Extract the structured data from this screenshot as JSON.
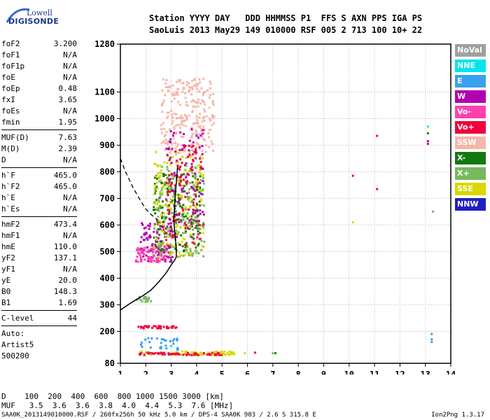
{
  "logo": {
    "line1": "Lowell",
    "line2": "DIGISONDE"
  },
  "header": {
    "line1": "Station YYYY DAY   DDD HHMMSS P1  FFS S AXN PPS IGA PS",
    "line2": "SaoLuis 2013 May29 149 010000 RSF 005 2 713 100 10+ 22"
  },
  "params": [
    {
      "k": "foF2",
      "v": "3.200"
    },
    {
      "k": "foF1",
      "v": "N/A"
    },
    {
      "k": "foF1p",
      "v": "N/A"
    },
    {
      "k": "foE",
      "v": "N/A"
    },
    {
      "k": "foEp",
      "v": "0.48"
    },
    {
      "k": "fxI",
      "v": "3.65"
    },
    {
      "k": "foEs",
      "v": "N/A"
    },
    {
      "k": "fmin",
      "v": "1.95"
    },
    {
      "sep": true
    },
    {
      "k": "MUF(D)",
      "v": "7.63"
    },
    {
      "k": "M(D)",
      "v": "2.39"
    },
    {
      "k": "D",
      "v": "N/A"
    },
    {
      "sep": true
    },
    {
      "k": "h`F",
      "v": "465.0"
    },
    {
      "k": "h`F2",
      "v": "465.0"
    },
    {
      "k": "h`E",
      "v": "N/A"
    },
    {
      "k": "h`Es",
      "v": "N/A"
    },
    {
      "sep": true
    },
    {
      "k": "hmF2",
      "v": "473.4"
    },
    {
      "k": "hmF1",
      "v": "N/A"
    },
    {
      "k": "hmE",
      "v": "110.0"
    },
    {
      "k": "yF2",
      "v": "137.1"
    },
    {
      "k": "yF1",
      "v": "N/A"
    },
    {
      "k": "yE",
      "v": "20.0"
    },
    {
      "k": "B0",
      "v": "148.3"
    },
    {
      "k": "B1",
      "v": "1.69"
    },
    {
      "sep": true
    },
    {
      "k": "C-level",
      "v": "44"
    },
    {
      "sep": true
    },
    {
      "t": "Auto:"
    },
    {
      "t": "Artist5"
    },
    {
      "t": "500200"
    }
  ],
  "legend": [
    {
      "label": "NoVal",
      "color": "#a0a0a0"
    },
    {
      "label": "NNE",
      "color": "#00e5ee"
    },
    {
      "label": "E",
      "color": "#3aa0f0"
    },
    {
      "label": "W",
      "color": "#b000b0"
    },
    {
      "label": "Vo-",
      "color": "#ff40b0"
    },
    {
      "label": "Vo+",
      "color": "#f0003c"
    },
    {
      "label": "SSW",
      "color": "#f4b8a8"
    },
    {
      "label": "X-",
      "color": "#107a10"
    },
    {
      "label": "X+",
      "color": "#78b860"
    },
    {
      "label": "SSE",
      "color": "#d8d800"
    },
    {
      "label": "NNW",
      "color": "#2020c0"
    }
  ],
  "chart_data": {
    "type": "scatter",
    "title": "",
    "xlabel": "",
    "ylabel": "",
    "xlim": [
      1,
      14
    ],
    "ylim": [
      80,
      1280
    ],
    "x_ticks": [
      1,
      2,
      3,
      4,
      5,
      6,
      7,
      8,
      9,
      10,
      11,
      12,
      13,
      14
    ],
    "y_ticks": [
      80,
      200,
      300,
      400,
      500,
      600,
      700,
      800,
      900,
      1000,
      1100,
      1280
    ],
    "grid": true,
    "profile_curve": {
      "x": [
        1.0,
        1.3,
        1.6,
        1.9,
        2.2,
        2.5,
        2.8,
        3.0,
        3.15,
        3.2,
        3.2,
        3.15,
        3.1,
        3.15,
        3.25
      ],
      "y": [
        280,
        300,
        318,
        335,
        355,
        385,
        420,
        450,
        470,
        480,
        510,
        560,
        620,
        700,
        820
      ]
    },
    "dashed_line": {
      "x": [
        1.0,
        1.2,
        1.5,
        1.8,
        2.0,
        2.2,
        2.45
      ],
      "y": [
        850,
        800,
        740,
        690,
        660,
        640,
        620
      ]
    },
    "clusters": [
      {
        "series": "SSW",
        "x": [
          2.6,
          4.7
        ],
        "y": [
          870,
          1150
        ],
        "n": 260
      },
      {
        "series": "W",
        "x": [
          1.8,
          3.1
        ],
        "y": [
          460,
          620
        ],
        "n": 120
      },
      {
        "series": "Vo-",
        "x": [
          1.6,
          2.8
        ],
        "y": [
          460,
          520
        ],
        "n": 80
      },
      {
        "series": "X-",
        "x": [
          2.3,
          4.2
        ],
        "y": [
          500,
          800
        ],
        "n": 180
      },
      {
        "series": "X+",
        "x": [
          2.3,
          4.3
        ],
        "y": [
          480,
          820
        ],
        "n": 160
      },
      {
        "series": "SSE",
        "x": [
          2.3,
          4.3
        ],
        "y": [
          480,
          880
        ],
        "n": 180
      },
      {
        "series": "Vo+",
        "x": [
          2.8,
          4.2
        ],
        "y": [
          520,
          900
        ],
        "n": 100
      },
      {
        "series": "W",
        "x": [
          2.8,
          4.3
        ],
        "y": [
          600,
          960
        ],
        "n": 90
      },
      {
        "series": "Vo+",
        "x": [
          1.7,
          3.3
        ],
        "y": [
          210,
          220
        ],
        "n": 40
      },
      {
        "series": "SSE",
        "x": [
          1.7,
          5.5
        ],
        "y": [
          110,
          125
        ],
        "n": 80
      },
      {
        "series": "Vo+",
        "x": [
          1.7,
          5.0
        ],
        "y": [
          110,
          120
        ],
        "n": 60
      },
      {
        "series": "E",
        "x": [
          1.8,
          3.3
        ],
        "y": [
          130,
          175
        ],
        "n": 30
      },
      {
        "series": "X+",
        "x": [
          1.6,
          2.2
        ],
        "y": [
          310,
          330
        ],
        "n": 20
      }
    ],
    "points": [
      {
        "series": "Vo+",
        "x": 11.1,
        "y": 935
      },
      {
        "series": "Vo+",
        "x": 10.15,
        "y": 785
      },
      {
        "series": "Vo+",
        "x": 11.1,
        "y": 735
      },
      {
        "series": "SSE",
        "x": 10.15,
        "y": 610
      },
      {
        "series": "NNE",
        "x": 13.1,
        "y": 970
      },
      {
        "series": "X-",
        "x": 13.1,
        "y": 945
      },
      {
        "series": "W",
        "x": 13.1,
        "y": 915
      },
      {
        "series": "Vo+",
        "x": 13.1,
        "y": 905
      },
      {
        "series": "X+",
        "x": 13.3,
        "y": 650
      },
      {
        "series": "E",
        "x": 13.25,
        "y": 190
      },
      {
        "series": "E",
        "x": 13.25,
        "y": 170
      },
      {
        "series": "E",
        "x": 13.25,
        "y": 160
      },
      {
        "series": "X+",
        "x": 7.0,
        "y": 118
      },
      {
        "series": "X-",
        "x": 7.1,
        "y": 118
      },
      {
        "series": "Vo+",
        "x": 6.3,
        "y": 120
      },
      {
        "series": "SSE",
        "x": 5.9,
        "y": 118
      },
      {
        "series": "NNE",
        "x": 3.0,
        "y": 145
      }
    ]
  },
  "scale": {
    "line1": "D    100  200  400  600  800 1000 1500 3000 [km]",
    "line2": "MUF   3.5  3.6  3.6  3.8  4.0  4.4  5.3  7.6 [MHz]"
  },
  "footer": {
    "left": "SAA0K_2013149010000.RSF / 260fx256h 50 kHz 5.0 km / DPS-4 SAA0K 903 / 2.6 S 315.8 E",
    "right": "Ion2Png 1.3.17"
  }
}
